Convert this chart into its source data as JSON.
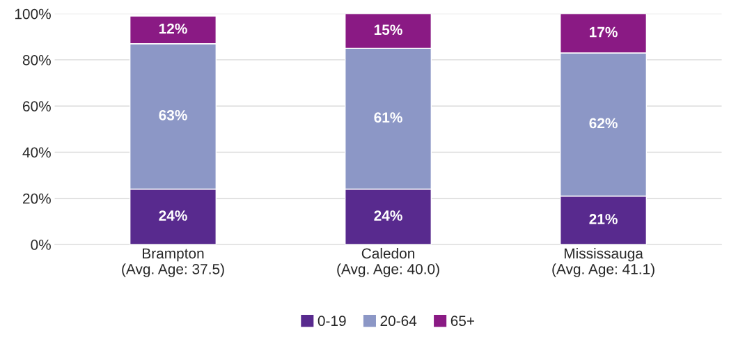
{
  "chart_data": {
    "type": "bar",
    "stacked": true,
    "categories": [
      "Brampton\n(Avg. Age: 37.5)",
      "Caledon\n(Avg. Age: 40.0)",
      "Mississauga\n(Avg. Age: 41.1)"
    ],
    "series": [
      {
        "name": "0-19",
        "color": "#582a8e",
        "values": [
          24,
          24,
          21
        ],
        "value_labels": [
          "24%",
          "24%",
          "21%"
        ]
      },
      {
        "name": "20-64",
        "color": "#8c97c6",
        "values": [
          63,
          61,
          62
        ],
        "value_labels": [
          "63%",
          "61%",
          "62%"
        ]
      },
      {
        "name": "65+",
        "color": "#8a1a84",
        "values": [
          12,
          15,
          17
        ],
        "value_labels": [
          "12%",
          "15%",
          "17%"
        ]
      }
    ],
    "ylim": [
      0,
      100
    ],
    "yticks": [
      {
        "value": 0,
        "label": "0%"
      },
      {
        "value": 20,
        "label": "20%"
      },
      {
        "value": 40,
        "label": "40%"
      },
      {
        "value": 60,
        "label": "60%"
      },
      {
        "value": 80,
        "label": "80%"
      },
      {
        "value": 100,
        "label": "100%"
      }
    ],
    "grid": "y",
    "legend": "bottom"
  }
}
